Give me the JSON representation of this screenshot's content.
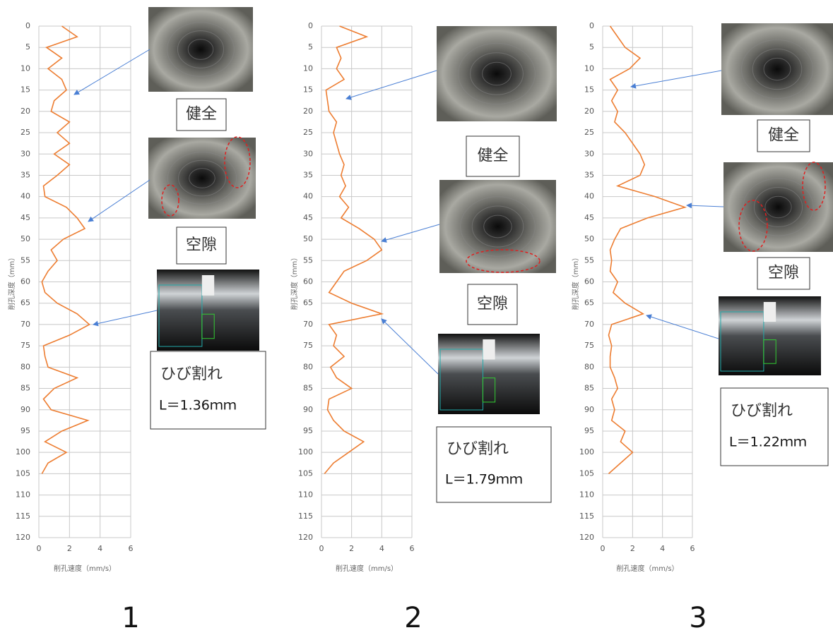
{
  "chart_data": [
    {
      "type": "line",
      "panel_label": "1",
      "xlabel": "削孔速度（mm/s）",
      "ylabel": "削孔深度（mm）",
      "color": "#ed7d31",
      "grid": true,
      "y_inverted": true,
      "xlim": [
        0,
        6
      ],
      "xticks": [
        0,
        2,
        4,
        6
      ],
      "ylim": [
        0,
        120
      ],
      "yticks": [
        0,
        5,
        10,
        15,
        20,
        25,
        30,
        35,
        40,
        45,
        50,
        55,
        60,
        65,
        70,
        75,
        80,
        85,
        90,
        95,
        100,
        105,
        110,
        115,
        120
      ],
      "depth": [
        0,
        2.5,
        5,
        7.5,
        10,
        12.5,
        15,
        17.5,
        20,
        22.5,
        25,
        27.5,
        30,
        32.5,
        35,
        37.5,
        40,
        42.5,
        45,
        47.5,
        50,
        52.5,
        55,
        57.5,
        60,
        62.5,
        65,
        67.5,
        70,
        72.5,
        75,
        77.5,
        80,
        82.5,
        85,
        87.5,
        90,
        92.5,
        95,
        97.5,
        100,
        102.5,
        105
      ],
      "values": [
        1.5,
        2.5,
        0.5,
        1.5,
        0.6,
        1.5,
        1.8,
        1.0,
        0.8,
        2.0,
        1.2,
        2.0,
        1.0,
        2.0,
        1.2,
        0.3,
        0.4,
        1.8,
        2.5,
        3.0,
        1.6,
        0.8,
        1.2,
        0.6,
        0.2,
        0.4,
        1.2,
        2.5,
        3.3,
        2.0,
        0.3,
        0.4,
        0.6,
        2.5,
        1.0,
        0.3,
        0.8,
        3.2,
        1.5,
        0.4,
        1.8,
        0.6,
        0.2
      ],
      "annotations": [
        "健全",
        "空隙",
        "ひび割れ",
        "L＝1.36ｍｍ"
      ]
    },
    {
      "type": "line",
      "panel_label": "2",
      "xlabel": "削孔速度（mm/s）",
      "ylabel": "削孔深度（mm）",
      "color": "#ed7d31",
      "grid": true,
      "y_inverted": true,
      "xlim": [
        0,
        6
      ],
      "xticks": [
        0,
        2,
        4,
        6
      ],
      "ylim": [
        0,
        120
      ],
      "yticks": [
        0,
        5,
        10,
        15,
        20,
        25,
        30,
        35,
        40,
        45,
        50,
        55,
        60,
        65,
        70,
        75,
        80,
        85,
        90,
        95,
        100,
        105,
        110,
        115,
        120
      ],
      "depth": [
        0,
        2.5,
        5,
        7.5,
        10,
        12.5,
        15,
        17.5,
        20,
        22.5,
        25,
        27.5,
        30,
        32.5,
        35,
        37.5,
        40,
        42.5,
        45,
        47.5,
        50,
        52.5,
        55,
        57.5,
        60,
        62.5,
        65,
        67.5,
        70,
        72.5,
        75,
        77.5,
        80,
        82.5,
        85,
        87.5,
        90,
        92.5,
        95,
        97.5,
        100,
        102.5,
        105
      ],
      "values": [
        1.2,
        3.0,
        1.0,
        1.3,
        1.0,
        1.5,
        0.3,
        0.4,
        0.5,
        1.0,
        0.8,
        1.0,
        1.2,
        1.5,
        1.3,
        1.6,
        1.2,
        1.8,
        1.3,
        2.5,
        3.5,
        4.0,
        3.0,
        1.5,
        1.0,
        0.5,
        2.0,
        4.0,
        0.5,
        1.0,
        0.8,
        1.5,
        0.6,
        1.0,
        2.0,
        0.5,
        0.4,
        0.8,
        1.5,
        2.8,
        1.8,
        0.8,
        0.2
      ],
      "annotations": [
        "健全",
        "空隙",
        "ひび割れ",
        "L＝1.79ｍｍ"
      ]
    },
    {
      "type": "line",
      "panel_label": "3",
      "xlabel": "削孔速度（mm/s）",
      "ylabel": "削孔深度（mm）",
      "color": "#ed7d31",
      "grid": true,
      "y_inverted": true,
      "xlim": [
        0,
        6
      ],
      "xticks": [
        0,
        2,
        4,
        6
      ],
      "ylim": [
        0,
        120
      ],
      "yticks": [
        0,
        5,
        10,
        15,
        20,
        25,
        30,
        35,
        40,
        45,
        50,
        55,
        60,
        65,
        70,
        75,
        80,
        85,
        90,
        95,
        100,
        105,
        110,
        115,
        120
      ],
      "depth": [
        0,
        2.5,
        5,
        7.5,
        10,
        12.5,
        15,
        17.5,
        20,
        22.5,
        25,
        27.5,
        30,
        32.5,
        35,
        37.5,
        40,
        42.5,
        45,
        47.5,
        50,
        52.5,
        55,
        57.5,
        60,
        62.5,
        65,
        67.5,
        70,
        72.5,
        75,
        77.5,
        80,
        82.5,
        85,
        87.5,
        90,
        92.5,
        95,
        97.5,
        100,
        102.5,
        105
      ],
      "values": [
        0.5,
        1.0,
        1.5,
        2.5,
        1.8,
        0.5,
        1.0,
        0.6,
        1.0,
        0.8,
        1.5,
        2.0,
        2.5,
        2.8,
        2.5,
        1.0,
        3.5,
        5.5,
        3.0,
        1.2,
        0.8,
        0.5,
        0.6,
        0.5,
        1.0,
        0.7,
        1.5,
        2.7,
        0.6,
        0.4,
        0.6,
        0.5,
        0.5,
        0.8,
        1.0,
        0.6,
        0.8,
        0.6,
        1.5,
        1.2,
        2.0,
        1.2,
        0.4
      ],
      "annotations": [
        "健全",
        "空隙",
        "ひび割れ",
        "L＝1.22ｍｍ"
      ]
    }
  ]
}
